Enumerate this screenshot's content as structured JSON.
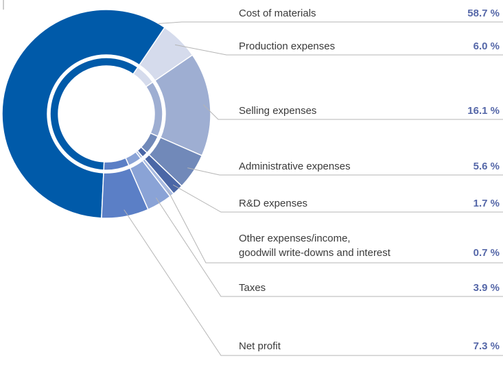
{
  "chart_data": {
    "type": "pie",
    "donut": true,
    "categories": [
      "Cost of materials",
      "Production expenses",
      "Selling expenses",
      "Administrative expenses",
      "R&D expenses",
      "Other expenses/income,\ngoodwill write-downs and interest",
      "Taxes",
      "Net profit"
    ],
    "values": [
      58.7,
      6.0,
      16.1,
      5.6,
      1.7,
      0.7,
      3.9,
      7.3
    ],
    "value_labels": [
      "58.7 %",
      "6.0 %",
      "16.1 %",
      "5.6 %",
      "1.7 %",
      "0.7 %",
      "3.9 %",
      "7.3 %"
    ],
    "colors": [
      "#005aa9",
      "#d5dbec",
      "#9eaed2",
      "#7189b9",
      "#4b67a6",
      "#a9bbe0",
      "#8aa3d6",
      "#5b7fc6"
    ]
  }
}
